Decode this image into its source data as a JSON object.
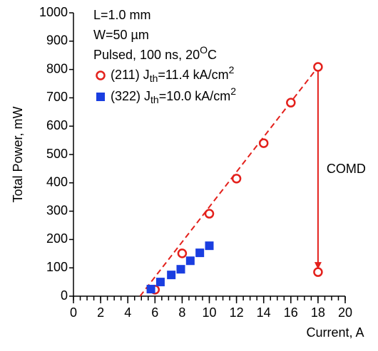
{
  "chart_data": {
    "type": "scatter",
    "x_label": "Current, A",
    "y_label": "Total Power, mW",
    "xlim": [
      0,
      20
    ],
    "xticks": [
      0,
      2,
      4,
      6,
      8,
      10,
      12,
      14,
      16,
      18,
      20
    ],
    "xminor": 0.5,
    "ylim": [
      0,
      1000
    ],
    "yticks": [
      0,
      100,
      200,
      300,
      400,
      500,
      600,
      700,
      800,
      900,
      1000
    ],
    "annotations": [
      {
        "parts": [
          "L=1.0 mm"
        ],
        "format": [
          "normal"
        ]
      },
      {
        "parts": [
          "W=50 µm"
        ],
        "format": [
          "normal"
        ]
      },
      {
        "parts": [
          "Pulsed, 100 ns, 20",
          "O",
          "C"
        ],
        "format": [
          "normal",
          "sup",
          "normal"
        ]
      }
    ],
    "series": [
      {
        "name": [
          "(211) J",
          "th",
          "=11.4 kA/cm",
          "2"
        ],
        "name_format": [
          "normal",
          "sub",
          "normal",
          "sup"
        ],
        "color": "#e3201b",
        "marker": "circle",
        "x": [
          6,
          8,
          10,
          12,
          14,
          16,
          18,
          18
        ],
        "values": [
          23,
          151,
          291,
          415,
          540,
          683,
          809,
          85
        ]
      },
      {
        "name": [
          "(322) J",
          "th",
          "=10.0 kA/cm",
          "2"
        ],
        "name_format": [
          "normal",
          "sub",
          "normal",
          "sup"
        ],
        "color": "#1a3ee0",
        "marker": "square",
        "x": [
          5.7,
          6.4,
          7.2,
          7.9,
          8.6,
          9.3,
          10.0
        ],
        "values": [
          25,
          50,
          75,
          95,
          125,
          153,
          178
        ]
      }
    ],
    "fit_line": {
      "color": "#e3201b",
      "style": "dashed",
      "x": [
        4.9,
        18
      ],
      "values": [
        0,
        809
      ]
    },
    "arrow": {
      "text": "COMD",
      "color": "#e3201b",
      "x": 18,
      "from": 809,
      "to": 85
    }
  }
}
